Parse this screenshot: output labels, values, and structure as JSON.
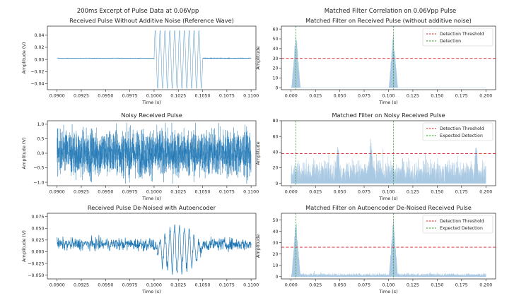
{
  "figure": {
    "left_suptitle": "200ms Excerpt of Pulse Data at 0.06Vpp",
    "right_suptitle": "Matched Filter Correlation on 0.06Vpp Pulse"
  },
  "chart_data": [
    {
      "id": "clean_pulse",
      "type": "line",
      "title": "Received Pulse Without Additive Noise (Reference Wave)",
      "xlabel": "Time (s)",
      "ylabel": "Amplitude (V)",
      "xlim": [
        0.089,
        0.1105
      ],
      "ylim": [
        -0.05,
        0.055
      ],
      "xticks": [
        0.09,
        0.0925,
        0.095,
        0.0975,
        0.1,
        0.1025,
        0.105,
        0.1075,
        0.11
      ],
      "xtick_labels": [
        "0.0900",
        "0.0925",
        "0.0950",
        "0.0975",
        "0.1000",
        "0.1025",
        "0.1050",
        "0.1075",
        "0.1100"
      ],
      "yticks": [
        -0.04,
        -0.02,
        0.0,
        0.02,
        0.04
      ],
      "ytick_labels": [
        "−0.04",
        "−0.02",
        "0.00",
        "0.02",
        "0.04"
      ],
      "color": "#1f77b4",
      "series": [
        {
          "kind": "baseline",
          "x_range": [
            0.09,
            0.1
          ],
          "level": 0.002,
          "jitter": 0.0004
        },
        {
          "kind": "sine_burst",
          "x_range": [
            0.1,
            0.105
          ],
          "amplitude": 0.048,
          "cycles": 10
        },
        {
          "kind": "baseline",
          "x_range": [
            0.105,
            0.11
          ],
          "level": 0.002,
          "jitter": 0.0004
        }
      ]
    },
    {
      "id": "noisy_pulse",
      "type": "line",
      "title": "Noisy Received Pulse",
      "xlabel": "Time (s)",
      "ylabel": "Amplitude (V)",
      "xlim": [
        0.089,
        0.1105
      ],
      "ylim": [
        -1.12,
        1.12
      ],
      "xticks": [
        0.09,
        0.0925,
        0.095,
        0.0975,
        0.1,
        0.1025,
        0.105,
        0.1075,
        0.11
      ],
      "xtick_labels": [
        "0.0900",
        "0.0925",
        "0.0950",
        "0.0975",
        "0.1000",
        "0.1025",
        "0.1050",
        "0.1075",
        "0.1100"
      ],
      "yticks": [
        -1.0,
        -0.5,
        0.0,
        0.5,
        1.0
      ],
      "ytick_labels": [
        "−1.0",
        "−0.5",
        "0.0",
        "0.5",
        "1.0"
      ],
      "color": "#1f77b4",
      "series": [
        {
          "kind": "noise",
          "x_range": [
            0.09,
            0.11
          ],
          "amplitude": 1.05
        }
      ]
    },
    {
      "id": "denoised_pulse",
      "type": "line",
      "title": "Received Pulse De-Noised with Autoencoder",
      "xlabel": "Time (s)",
      "ylabel": "Amplitude (V)",
      "xlim": [
        0.089,
        0.1105
      ],
      "ylim": [
        -0.058,
        0.082
      ],
      "xticks": [
        0.09,
        0.0925,
        0.095,
        0.0975,
        0.1,
        0.1025,
        0.105,
        0.1075,
        0.11
      ],
      "xtick_labels": [
        "0.0900",
        "0.0925",
        "0.0950",
        "0.0975",
        "0.1000",
        "0.1025",
        "0.1050",
        "0.1075",
        "0.1100"
      ],
      "yticks": [
        -0.05,
        -0.025,
        0.0,
        0.025,
        0.05,
        0.075
      ],
      "ytick_labels": [
        "−0.050",
        "−0.025",
        "0.000",
        "0.025",
        "0.050",
        "0.075"
      ],
      "color": "#1f77b4",
      "series": [
        {
          "kind": "denoised",
          "x_range": [
            0.09,
            0.11
          ],
          "center": 0.016,
          "noise": 0.013,
          "burst_range": [
            0.1,
            0.105
          ],
          "burst_amplitude": 0.05
        }
      ]
    },
    {
      "id": "mf_clean",
      "type": "area",
      "title": "Matched Filter on Received Pulse (without additive noise)",
      "xlabel": "Time (s)",
      "ylabel": "Amplitude",
      "xlim": [
        -0.01,
        0.21
      ],
      "ylim": [
        -2,
        63
      ],
      "xticks": [
        0.0,
        0.025,
        0.05,
        0.075,
        0.1,
        0.125,
        0.15,
        0.175,
        0.2
      ],
      "xtick_labels": [
        "0.000",
        "0.025",
        "0.050",
        "0.075",
        "0.100",
        "0.125",
        "0.150",
        "0.175",
        "0.200"
      ],
      "yticks": [
        0,
        10,
        20,
        30,
        40,
        50,
        60
      ],
      "ytick_labels": [
        "0",
        "10",
        "20",
        "30",
        "40",
        "50",
        "60"
      ],
      "fill_color": "#a9c9e3",
      "threshold": 30,
      "detections": [
        0.005,
        0.105
      ],
      "peaks": [
        {
          "x": 0.005,
          "height": 60,
          "half_width": 0.0045
        },
        {
          "x": 0.105,
          "height": 60,
          "half_width": 0.0045
        }
      ],
      "background": {
        "kind": "none"
      },
      "legend": {
        "position": "top-right",
        "entries": [
          {
            "label": "Detection Threshold",
            "color": "#d62728",
            "style": "dashed"
          },
          {
            "label": "Detection",
            "color": "#2ca02c",
            "style": "dashed"
          }
        ]
      }
    },
    {
      "id": "mf_noisy",
      "type": "area",
      "title": "Matched Filter on Noisy Received Pulse",
      "xlabel": "Time (s)",
      "ylabel": "Amplitude",
      "xlim": [
        -0.01,
        0.21
      ],
      "ylim": [
        -3,
        80
      ],
      "xticks": [
        0.0,
        0.025,
        0.05,
        0.075,
        0.1,
        0.125,
        0.15,
        0.175,
        0.2
      ],
      "xtick_labels": [
        "0.000",
        "0.025",
        "0.050",
        "0.075",
        "0.100",
        "0.125",
        "0.150",
        "0.175",
        "0.200"
      ],
      "yticks": [
        0,
        20,
        40,
        60,
        80
      ],
      "ytick_labels": [
        "0",
        "20",
        "40",
        "60",
        "80"
      ],
      "fill_color": "#a9c9e3",
      "threshold": 38,
      "detections": [
        0.005,
        0.105
      ],
      "peaks": [
        {
          "x": 0.048,
          "height": 57,
          "half_width": 0.003
        },
        {
          "x": 0.082,
          "height": 62,
          "half_width": 0.003
        },
        {
          "x": 0.19,
          "height": 55,
          "half_width": 0.003
        }
      ],
      "background": {
        "kind": "noise",
        "mean": 14,
        "spread": 28
      },
      "legend": {
        "position": "top-right",
        "entries": [
          {
            "label": "Detection Threshold",
            "color": "#d62728",
            "style": "dashed"
          },
          {
            "label": "Expected Detection",
            "color": "#2ca02c",
            "style": "dashed"
          }
        ]
      }
    },
    {
      "id": "mf_denoised",
      "type": "area",
      "title": "Matched Filter on Autoencoder De-Noised Received Pulse",
      "xlabel": "Time (s)",
      "ylabel": "Amplitude",
      "xlim": [
        -0.01,
        0.21
      ],
      "ylim": [
        -2,
        56
      ],
      "xticks": [
        0.0,
        0.025,
        0.05,
        0.075,
        0.1,
        0.125,
        0.15,
        0.175,
        0.2
      ],
      "xtick_labels": [
        "0.000",
        "0.025",
        "0.050",
        "0.075",
        "0.100",
        "0.125",
        "0.150",
        "0.175",
        "0.200"
      ],
      "yticks": [
        0,
        10,
        20,
        30,
        40,
        50
      ],
      "ytick_labels": [
        "0",
        "10",
        "20",
        "30",
        "40",
        "50"
      ],
      "fill_color": "#a9c9e3",
      "threshold": 26,
      "detections": [
        0.005,
        0.105
      ],
      "peaks": [
        {
          "x": 0.005,
          "height": 53,
          "half_width": 0.0045
        },
        {
          "x": 0.105,
          "height": 53,
          "half_width": 0.0045
        }
      ],
      "background": {
        "kind": "noise",
        "mean": 1.6,
        "spread": 2.4
      },
      "legend": {
        "position": "top-right",
        "entries": [
          {
            "label": "Detection Threshold",
            "color": "#d62728",
            "style": "dashed"
          },
          {
            "label": "Expected Detection",
            "color": "#2ca02c",
            "style": "dashed"
          }
        ]
      }
    }
  ]
}
